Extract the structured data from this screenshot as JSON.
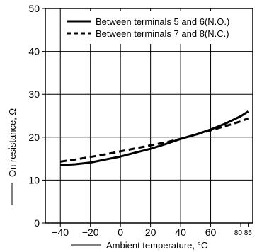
{
  "chart_data": {
    "type": "line",
    "xlabel": "Ambient temperature, °C",
    "ylabel": "On resistance, Ω",
    "xlim": [
      -50,
      88
    ],
    "ylim": [
      0,
      50
    ],
    "grid": true,
    "legend_position": "top-right",
    "x_ticks": [
      -40,
      -20,
      0,
      20,
      40,
      60
    ],
    "x_ticks_small": [
      80,
      85
    ],
    "x_tick_labels": [
      "−40",
      "−20",
      "0",
      "20",
      "40",
      "60"
    ],
    "x_tick_small_label": "80 85",
    "y_ticks": [
      0,
      10,
      20,
      30,
      40,
      50
    ],
    "y_tick_labels": [
      "0",
      "10",
      "20",
      "30",
      "40",
      "50"
    ],
    "series": [
      {
        "name": "Between terminals 5 and 6(N.O.)",
        "style": "solid",
        "x": [
          -40,
          -30,
          -20,
          -10,
          0,
          10,
          20,
          30,
          40,
          50,
          60,
          70,
          80,
          85
        ],
        "y": [
          13.5,
          13.7,
          14.1,
          14.8,
          15.5,
          16.4,
          17.3,
          18.4,
          19.6,
          20.6,
          21.8,
          23.2,
          24.9,
          26.0
        ]
      },
      {
        "name": "Between terminals 7 and 8(N.C.)",
        "style": "dashed",
        "x": [
          -40,
          -30,
          -20,
          -10,
          0,
          10,
          20,
          30,
          40,
          50,
          60,
          70,
          80,
          85
        ],
        "y": [
          14.3,
          14.8,
          15.4,
          16.0,
          16.7,
          17.4,
          18.1,
          18.8,
          19.6,
          20.6,
          21.6,
          22.6,
          23.7,
          24.4
        ]
      }
    ]
  }
}
